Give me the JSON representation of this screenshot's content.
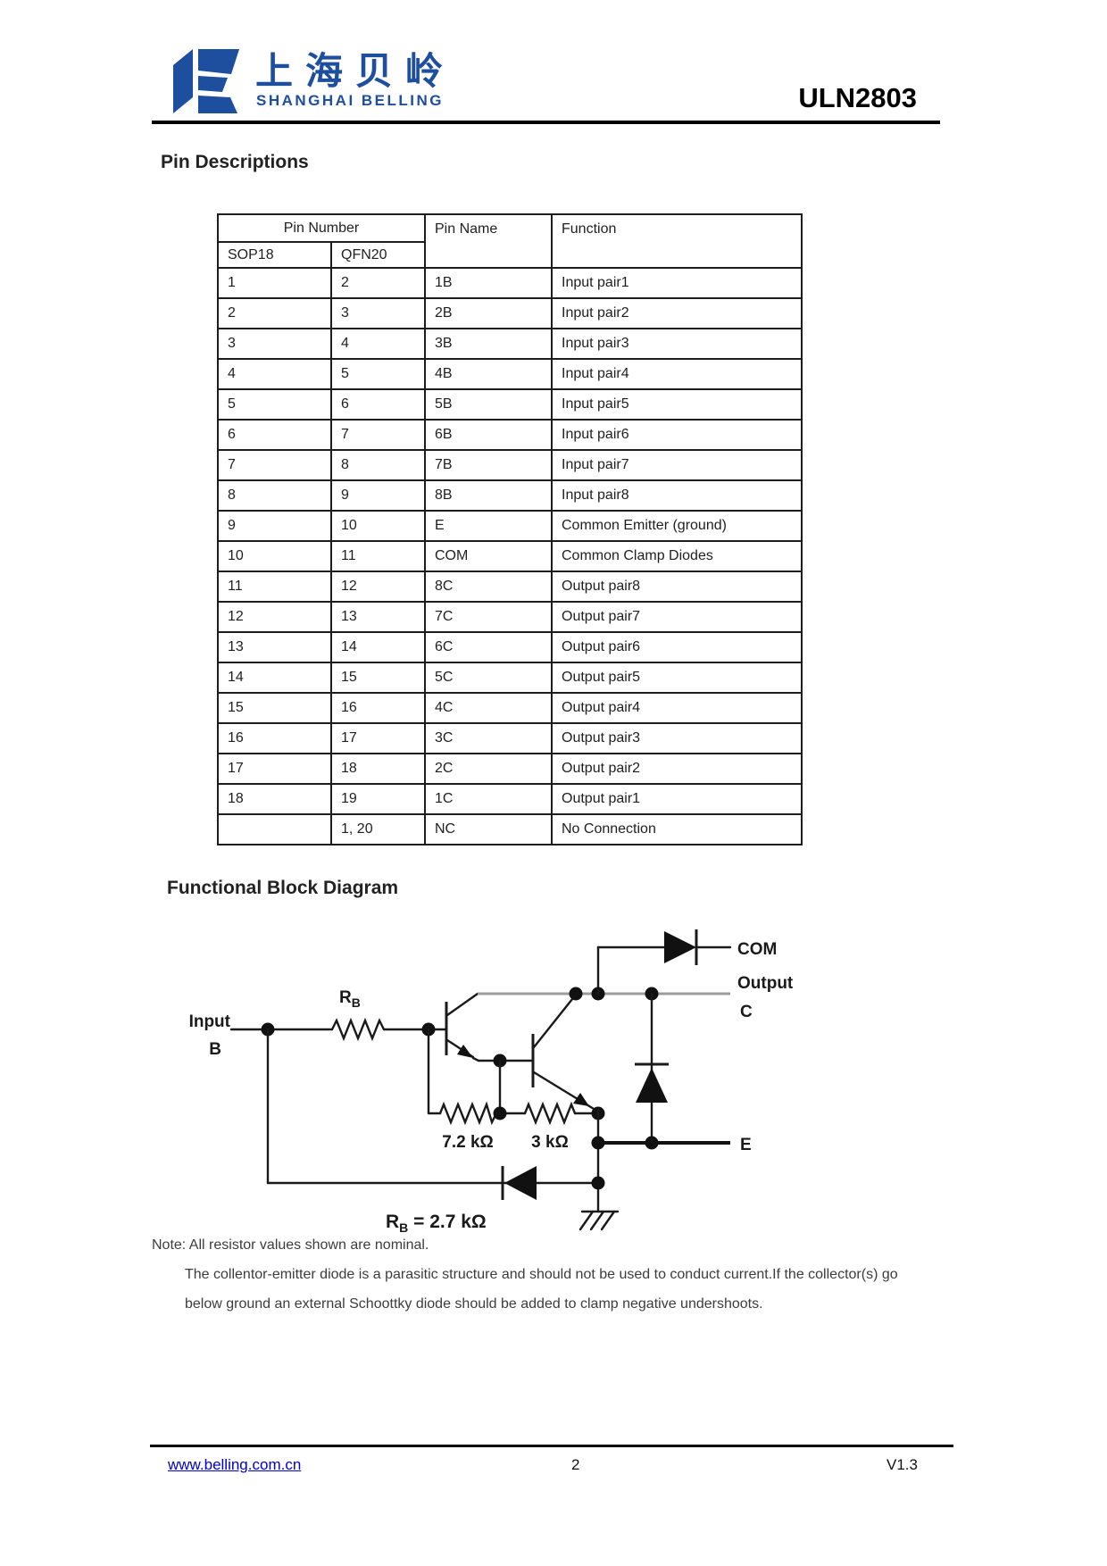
{
  "header": {
    "logo_chinese": "上海贝岭",
    "logo_subtitle": "SHANGHAI BELLING",
    "part_number": "ULN2803",
    "brand_color": "#1e4e9e"
  },
  "sections": {
    "pin_descriptions_title": "Pin Descriptions",
    "block_diagram_title": "Functional Block Diagram"
  },
  "pin_table": {
    "headers": {
      "pin_number": "Pin Number",
      "sop18": "SOP18",
      "qfn20": "QFN20",
      "pin_name": "Pin Name",
      "function": "Function"
    },
    "rows": [
      {
        "sop18": "1",
        "qfn20": "2",
        "pin_name": "1B",
        "function": "Input pair1"
      },
      {
        "sop18": "2",
        "qfn20": "3",
        "pin_name": "2B",
        "function": "Input pair2"
      },
      {
        "sop18": "3",
        "qfn20": "4",
        "pin_name": "3B",
        "function": "Input pair3"
      },
      {
        "sop18": "4",
        "qfn20": "5",
        "pin_name": "4B",
        "function": "Input pair4"
      },
      {
        "sop18": "5",
        "qfn20": "6",
        "pin_name": "5B",
        "function": "Input pair5"
      },
      {
        "sop18": "6",
        "qfn20": "7",
        "pin_name": "6B",
        "function": "Input pair6"
      },
      {
        "sop18": "7",
        "qfn20": "8",
        "pin_name": "7B",
        "function": "Input pair7"
      },
      {
        "sop18": "8",
        "qfn20": "9",
        "pin_name": "8B",
        "function": "Input pair8"
      },
      {
        "sop18": "9",
        "qfn20": "10",
        "pin_name": "E",
        "function": "Common Emitter (ground)"
      },
      {
        "sop18": "10",
        "qfn20": "11",
        "pin_name": "COM",
        "function": "Common Clamp Diodes"
      },
      {
        "sop18": "11",
        "qfn20": "12",
        "pin_name": "8C",
        "function": "Output pair8"
      },
      {
        "sop18": "12",
        "qfn20": "13",
        "pin_name": "7C",
        "function": "Output pair7"
      },
      {
        "sop18": "13",
        "qfn20": "14",
        "pin_name": "6C",
        "function": "Output pair6"
      },
      {
        "sop18": "14",
        "qfn20": "15",
        "pin_name": "5C",
        "function": "Output pair5"
      },
      {
        "sop18": "15",
        "qfn20": "16",
        "pin_name": "4C",
        "function": "Output pair4"
      },
      {
        "sop18": "16",
        "qfn20": "17",
        "pin_name": "3C",
        "function": "Output pair3"
      },
      {
        "sop18": "17",
        "qfn20": "18",
        "pin_name": "2C",
        "function": "Output pair2"
      },
      {
        "sop18": "18",
        "qfn20": "19",
        "pin_name": "1C",
        "function": "Output pair1"
      },
      {
        "sop18": "",
        "qfn20": "1, 20",
        "pin_name": "NC",
        "function": "No Connection"
      }
    ]
  },
  "diagram": {
    "input_label_1": "Input",
    "input_label_2": "B",
    "rb_r": "R",
    "rb_sub": "B",
    "com_label": "COM",
    "output_label_1": "Output",
    "output_label_2": "C",
    "e_label": "E",
    "resistor_1": "7.2 kΩ",
    "resistor_2": "3 kΩ",
    "rb_eq_r": "R",
    "rb_eq_sub": "B",
    "rb_eq_rest": " = 2.7 kΩ"
  },
  "notes": {
    "line1": "Note: All resistor values shown are nominal.",
    "line2": "The collentor-emitter diode is a parasitic structure and should not be used to conduct current.If the collector(s) go",
    "line3": "below ground an external Schoottky diode should be added to clamp negative undershoots."
  },
  "footer": {
    "url": "www.belling.com.cn",
    "page": "2",
    "version": "V1.3"
  }
}
